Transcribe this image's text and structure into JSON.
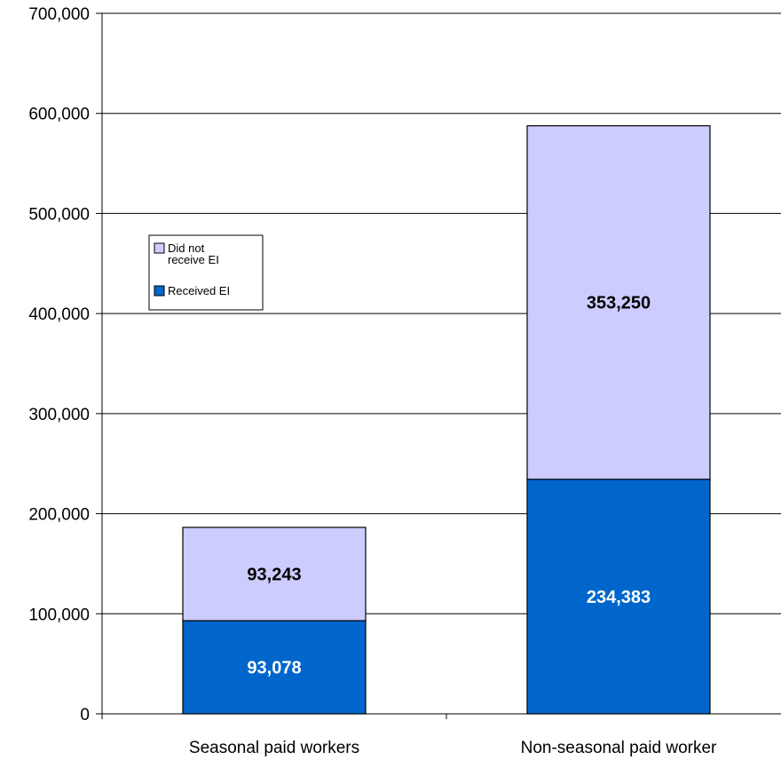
{
  "chart_data": {
    "type": "bar",
    "stacked": true,
    "categories": [
      "Seasonal paid workers",
      "Non-seasonal paid worker"
    ],
    "series": [
      {
        "name": "Received EI",
        "values": [
          93078,
          234383
        ],
        "color": "#0066cc",
        "label_color": "#ffffff",
        "labels": [
          "93,078",
          "234,383"
        ]
      },
      {
        "name": "Did not receive EI",
        "values": [
          93243,
          353250
        ],
        "color": "#ccccff",
        "label_color": "#000000",
        "labels": [
          "93,243",
          "353,250"
        ]
      }
    ],
    "ylim": [
      0,
      700000
    ],
    "yticks": [
      0,
      100000,
      200000,
      300000,
      400000,
      500000,
      600000,
      700000
    ],
    "ytick_labels": [
      "0",
      "100,000",
      "200,000",
      "300,000",
      "400,000",
      "500,000",
      "600,000",
      "700,000"
    ],
    "grid": true,
    "legend": {
      "placement": "left",
      "entries": [
        {
          "label_lines": [
            "Did not",
            "receive EI"
          ],
          "color": "#ccccff"
        },
        {
          "label_lines": [
            "Received EI"
          ],
          "color": "#0066cc"
        }
      ]
    },
    "title": "",
    "xlabel": "",
    "ylabel": ""
  }
}
